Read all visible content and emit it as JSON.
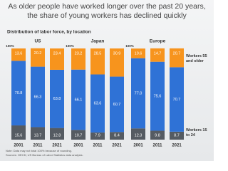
{
  "title": "As older people have worked longer over the past 20 years, the share of young workers has declined quickly",
  "subtitle": "Distribution of labor force, by location",
  "notes": [
    "Note: Data may not total 100% because of rounding.",
    "Sources: OECD; US Bureau of Labor Statistics data analysis."
  ],
  "chart_data": [
    {
      "type": "bar",
      "stacked": true,
      "title": "US",
      "categories": [
        "2001",
        "2011",
        "2021"
      ],
      "ylim": [
        0,
        100
      ],
      "yticks": [
        {
          "value": 100,
          "label": "100%"
        }
      ],
      "series": [
        {
          "color": "#555b62",
          "values": [
            15.6,
            13.7,
            12.8
          ]
        },
        {
          "color": "#2f72d6",
          "values": [
            70.8,
            66.3,
            63.8
          ]
        },
        {
          "color": "#f7941d",
          "values": [
            13.6,
            20.2,
            23.4
          ]
        }
      ]
    },
    {
      "type": "bar",
      "stacked": true,
      "title": "Japan",
      "categories": [
        "2001",
        "2011",
        "2021"
      ],
      "ylim": [
        0,
        100
      ],
      "yticks": [
        {
          "value": 100,
          "label": "100%"
        }
      ],
      "series": [
        {
          "color": "#555b62",
          "values": [
            10.7,
            7.9,
            8.4
          ]
        },
        {
          "color": "#2f72d6",
          "values": [
            66.1,
            63.6,
            60.7
          ]
        },
        {
          "color": "#f7941d",
          "values": [
            23.2,
            28.5,
            30.9
          ]
        }
      ]
    },
    {
      "type": "bar",
      "stacked": true,
      "title": "Europe",
      "categories": [
        "2001",
        "2011",
        "2021"
      ],
      "ylim": [
        0,
        100
      ],
      "yticks": [
        {
          "value": 100,
          "label": "100%"
        }
      ],
      "series": [
        {
          "name": "Workers 15 to 24",
          "color": "#555b62",
          "values": [
            12.3,
            9.8,
            8.7
          ]
        },
        {
          "color": "#2f72d6",
          "values": [
            77,
            75.6,
            70.7
          ],
          "value_labels": [
            "77.0",
            "75.6",
            "70.7"
          ]
        },
        {
          "name": "Workers 55 and older",
          "color": "#f7941d",
          "values": [
            10.6,
            14.7,
            20.7
          ]
        }
      ]
    }
  ]
}
